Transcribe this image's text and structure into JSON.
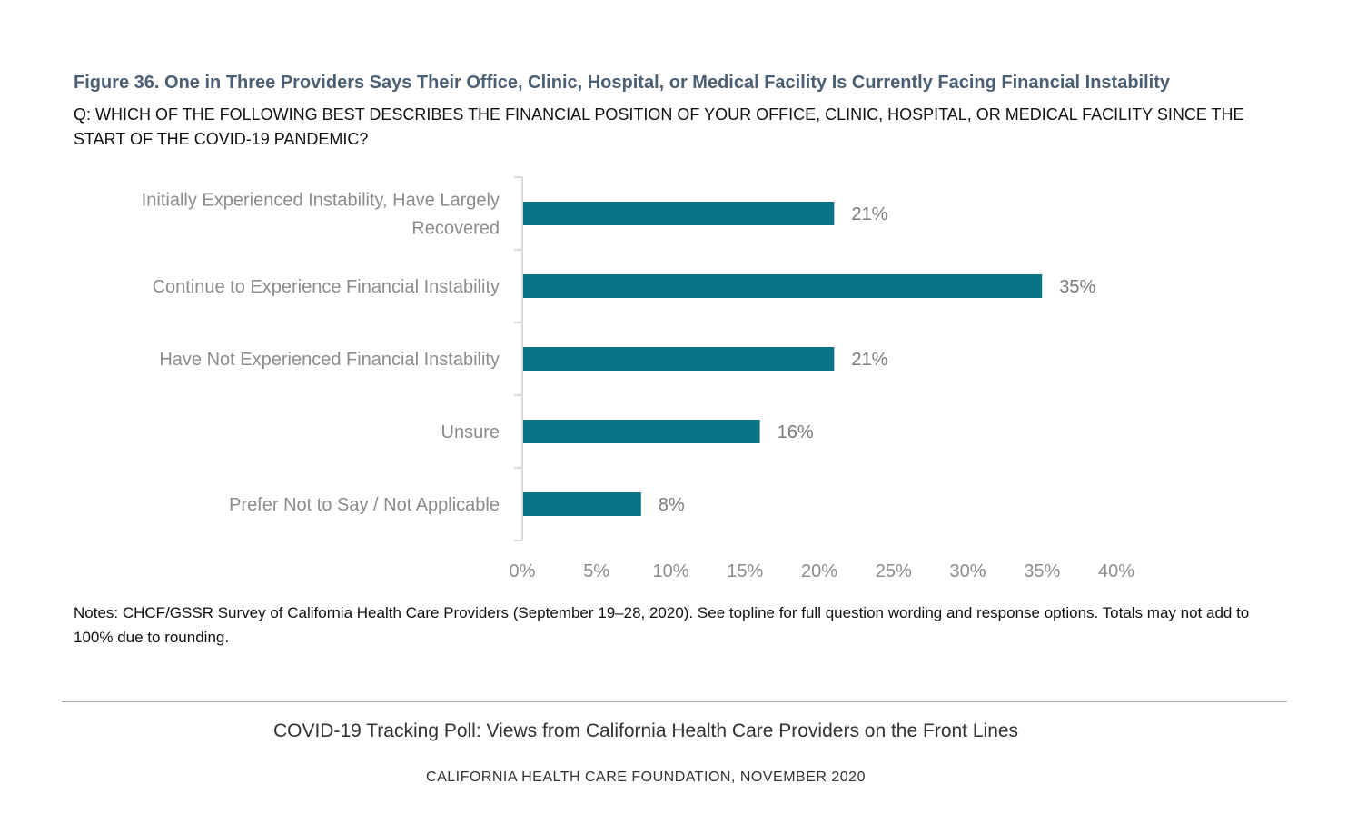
{
  "header": {
    "title": "Figure 36. One in Three Providers Says Their Office, Clinic, Hospital, or Medical Facility Is Currently Facing Financial Instability",
    "question": "Q: WHICH OF THE FOLLOWING BEST DESCRIBES THE FINANCIAL POSITION OF YOUR OFFICE, CLINIC, HOSPITAL, OR MEDICAL FACILITY SINCE THE START OF THE COVID-19 PANDEMIC?"
  },
  "chart_data": {
    "type": "bar",
    "orientation": "horizontal",
    "categories": [
      "Initially Experienced Instability, Have Largely Recovered",
      "Continue to Experience Financial Instability",
      "Have Not Experienced Financial Instability",
      "Unsure",
      "Prefer Not to Say / Not Applicable"
    ],
    "category_lines": [
      [
        "Initially Experienced Instability, Have Largely",
        "Recovered"
      ],
      [
        "Continue to Experience Financial Instability"
      ],
      [
        "Have Not Experienced Financial Instability"
      ],
      [
        "Unsure"
      ],
      [
        "Prefer Not to Say / Not Applicable"
      ]
    ],
    "values": [
      21,
      35,
      21,
      16,
      8
    ],
    "value_labels": [
      "21%",
      "35%",
      "21%",
      "16%",
      "8%"
    ],
    "xlim": [
      0,
      40
    ],
    "x_ticks": [
      0,
      5,
      10,
      15,
      20,
      25,
      30,
      35,
      40
    ],
    "x_tick_labels": [
      "0%",
      "5%",
      "10%",
      "15%",
      "20%",
      "25%",
      "30%",
      "35%",
      "40%"
    ],
    "grid": false,
    "bar_color": "#0a7385",
    "axis_color": "#d9d9d9"
  },
  "notes": "Notes: CHCF/GSSR Survey of California Health Care Providers (September 19–28, 2020). See topline for full question wording and response options. Totals may not add to 100% due to rounding.",
  "footer": {
    "report_title": "COVID-19 Tracking Poll: Views from California Health Care Providers on the Front Lines",
    "organization": "CALIFORNIA HEALTH CARE FOUNDATION, NOVEMBER 2020"
  }
}
